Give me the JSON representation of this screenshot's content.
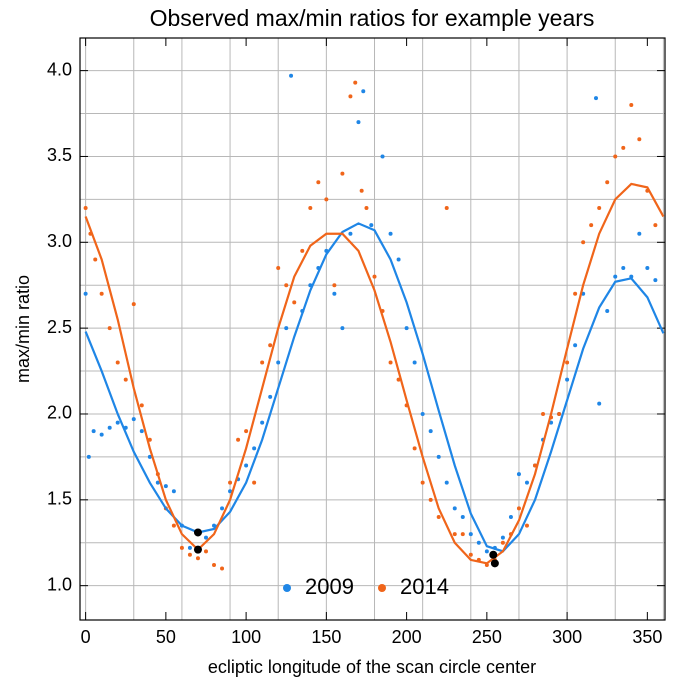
{
  "chart_data": {
    "type": "scatter",
    "title": "Observed max/min ratios for example years",
    "xlabel": "ecliptic longitude of the scan circle center",
    "ylabel": "max/min ratio",
    "xlim": [
      -3.5,
      361
    ],
    "ylim": [
      0.8,
      4.19
    ],
    "xticks": [
      0,
      50,
      100,
      150,
      200,
      250,
      300,
      350
    ],
    "yticks": [
      {
        "value": 1.0,
        "label": "1.0"
      },
      {
        "value": 1.5,
        "label": "1.5"
      },
      {
        "value": 2.0,
        "label": "2.0"
      },
      {
        "value": 2.5,
        "label": "2.5"
      },
      {
        "value": 3.0,
        "label": "3.0"
      },
      {
        "value": 3.5,
        "label": "3.5"
      },
      {
        "value": 4.0,
        "label": "4.0"
      }
    ],
    "xgrid": [
      0,
      30,
      60,
      90,
      120,
      150,
      180,
      210,
      240,
      270,
      300,
      330,
      360
    ],
    "ygrid": [
      1.0,
      1.25,
      1.5,
      1.75,
      2.0,
      2.25,
      2.5,
      2.75,
      3.0,
      3.25,
      3.5,
      3.75,
      4.0
    ],
    "grid": true,
    "legend": "lower center",
    "series": [
      {
        "name": "2009",
        "color": "#1f86e6",
        "x": [
          0,
          2,
          5,
          10,
          15,
          20,
          25,
          30,
          35,
          40,
          45,
          50,
          55,
          60,
          65,
          70,
          75,
          80,
          85,
          90,
          95,
          100,
          105,
          110,
          115,
          120,
          125,
          128,
          135,
          140,
          145,
          150,
          155,
          160,
          165,
          170,
          173,
          178,
          185,
          190,
          195,
          200,
          205,
          210,
          215,
          220,
          225,
          230,
          235,
          240,
          245,
          250,
          255,
          260,
          265,
          270,
          275,
          280,
          285,
          290,
          295,
          300,
          305,
          310,
          318,
          320,
          325,
          330,
          335,
          340,
          345,
          350,
          355
        ],
        "values": [
          2.7,
          1.75,
          1.9,
          1.88,
          1.92,
          1.95,
          1.92,
          1.97,
          1.9,
          1.75,
          1.6,
          1.58,
          1.55,
          1.35,
          1.22,
          1.3,
          1.28,
          1.35,
          1.45,
          1.55,
          1.62,
          1.7,
          1.8,
          1.95,
          2.1,
          2.3,
          2.5,
          3.97,
          2.6,
          2.75,
          2.85,
          2.95,
          2.7,
          2.5,
          3.05,
          3.7,
          3.88,
          3.1,
          3.5,
          3.05,
          2.9,
          2.5,
          2.3,
          2.0,
          1.9,
          1.75,
          1.6,
          1.45,
          1.4,
          1.3,
          1.25,
          1.2,
          1.22,
          1.28,
          1.4,
          1.65,
          1.6,
          1.7,
          1.85,
          1.95,
          2.0,
          2.2,
          2.4,
          2.7,
          3.84,
          2.06,
          2.6,
          2.8,
          2.85,
          2.8,
          3.05,
          2.85,
          2.78
        ]
      },
      {
        "name": "2014",
        "color": "#f0651a",
        "x": [
          0,
          3,
          6,
          10,
          15,
          20,
          25,
          30,
          35,
          40,
          45,
          50,
          55,
          60,
          65,
          70,
          75,
          80,
          85,
          90,
          95,
          100,
          105,
          110,
          115,
          120,
          125,
          130,
          135,
          140,
          145,
          150,
          155,
          160,
          165,
          168,
          172,
          175,
          180,
          185,
          190,
          195,
          200,
          205,
          210,
          215,
          220,
          225,
          230,
          235,
          240,
          245,
          250,
          255,
          260,
          265,
          270,
          275,
          280,
          285,
          290,
          295,
          300,
          305,
          310,
          315,
          320,
          325,
          330,
          335,
          340,
          345,
          350,
          355
        ],
        "values": [
          3.2,
          3.05,
          2.9,
          2.7,
          2.5,
          2.3,
          2.2,
          2.64,
          2.05,
          1.85,
          1.65,
          1.45,
          1.35,
          1.22,
          1.18,
          1.16,
          1.2,
          1.12,
          1.1,
          1.6,
          1.85,
          1.9,
          1.6,
          2.3,
          2.4,
          2.85,
          2.75,
          2.65,
          2.95,
          3.2,
          3.35,
          3.25,
          2.75,
          3.4,
          3.85,
          3.93,
          3.3,
          3.2,
          2.8,
          2.6,
          2.3,
          2.2,
          2.05,
          1.8,
          1.6,
          1.5,
          1.4,
          3.2,
          1.3,
          1.3,
          1.18,
          1.15,
          1.12,
          1.15,
          1.25,
          1.3,
          1.45,
          1.35,
          1.7,
          2.0,
          1.98,
          2.0,
          2.3,
          2.7,
          3.0,
          3.1,
          3.2,
          3.35,
          3.5,
          3.55,
          3.8,
          3.6,
          3.3,
          3.1
        ]
      }
    ],
    "fit_x": [
      0,
      10,
      20,
      30,
      40,
      50,
      60,
      70,
      80,
      90,
      100,
      110,
      120,
      130,
      140,
      150,
      160,
      170,
      180,
      190,
      200,
      210,
      220,
      230,
      240,
      250,
      260,
      270,
      280,
      290,
      300,
      310,
      320,
      330,
      340,
      350,
      360
    ],
    "fits": [
      {
        "color": "#1f86e6",
        "values": [
          2.48,
          2.25,
          2.0,
          1.78,
          1.6,
          1.45,
          1.35,
          1.31,
          1.33,
          1.43,
          1.6,
          1.85,
          2.15,
          2.45,
          2.72,
          2.93,
          3.06,
          3.11,
          3.07,
          2.9,
          2.65,
          2.35,
          2.02,
          1.7,
          1.42,
          1.23,
          1.2,
          1.3,
          1.5,
          1.78,
          2.08,
          2.38,
          2.62,
          2.77,
          2.79,
          2.68,
          2.47
        ]
      },
      {
        "color": "#f0651a",
        "values": [
          3.15,
          2.9,
          2.55,
          2.15,
          1.8,
          1.5,
          1.3,
          1.21,
          1.3,
          1.5,
          1.8,
          2.15,
          2.5,
          2.8,
          2.98,
          3.05,
          3.05,
          2.95,
          2.72,
          2.42,
          2.08,
          1.75,
          1.45,
          1.25,
          1.15,
          1.13,
          1.2,
          1.38,
          1.65,
          2.0,
          2.38,
          2.75,
          3.05,
          3.25,
          3.34,
          3.32,
          3.15
        ]
      }
    ],
    "minima": {
      "color": "#000000",
      "x": [
        70,
        70,
        254,
        255
      ],
      "values": [
        1.31,
        1.21,
        1.18,
        1.13
      ]
    }
  }
}
